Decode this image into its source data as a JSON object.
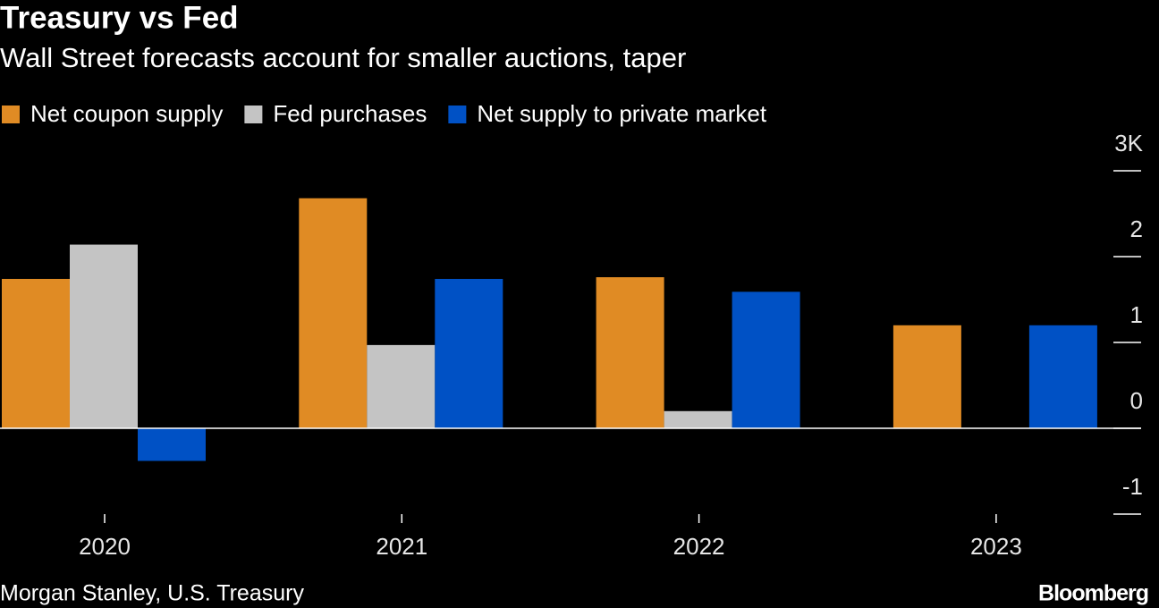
{
  "chart_data": {
    "type": "bar",
    "title": "Treasury vs Fed",
    "subtitle": "Wall Street forecasts account for smaller auctions, taper",
    "source": "Morgan Stanley, U.S. Treasury",
    "brand": "Bloomberg",
    "categories": [
      "2020",
      "2021",
      "2022",
      "2023"
    ],
    "series": [
      {
        "name": "Net coupon supply",
        "color": "#e08b24",
        "values": [
          1.74,
          2.68,
          1.76,
          1.2
        ]
      },
      {
        "name": "Fed purchases",
        "color": "#c4c4c4",
        "values": [
          2.14,
          0.97,
          0.2,
          null
        ]
      },
      {
        "name": "Net supply to private market",
        "color": "#0051c5",
        "values": [
          -0.38,
          1.74,
          1.59,
          1.2
        ]
      }
    ],
    "ylim": [
      -1,
      3
    ],
    "yticks": [
      -1,
      0,
      1,
      2,
      {
        "value": 3,
        "label": "3K"
      }
    ],
    "grid": false
  }
}
